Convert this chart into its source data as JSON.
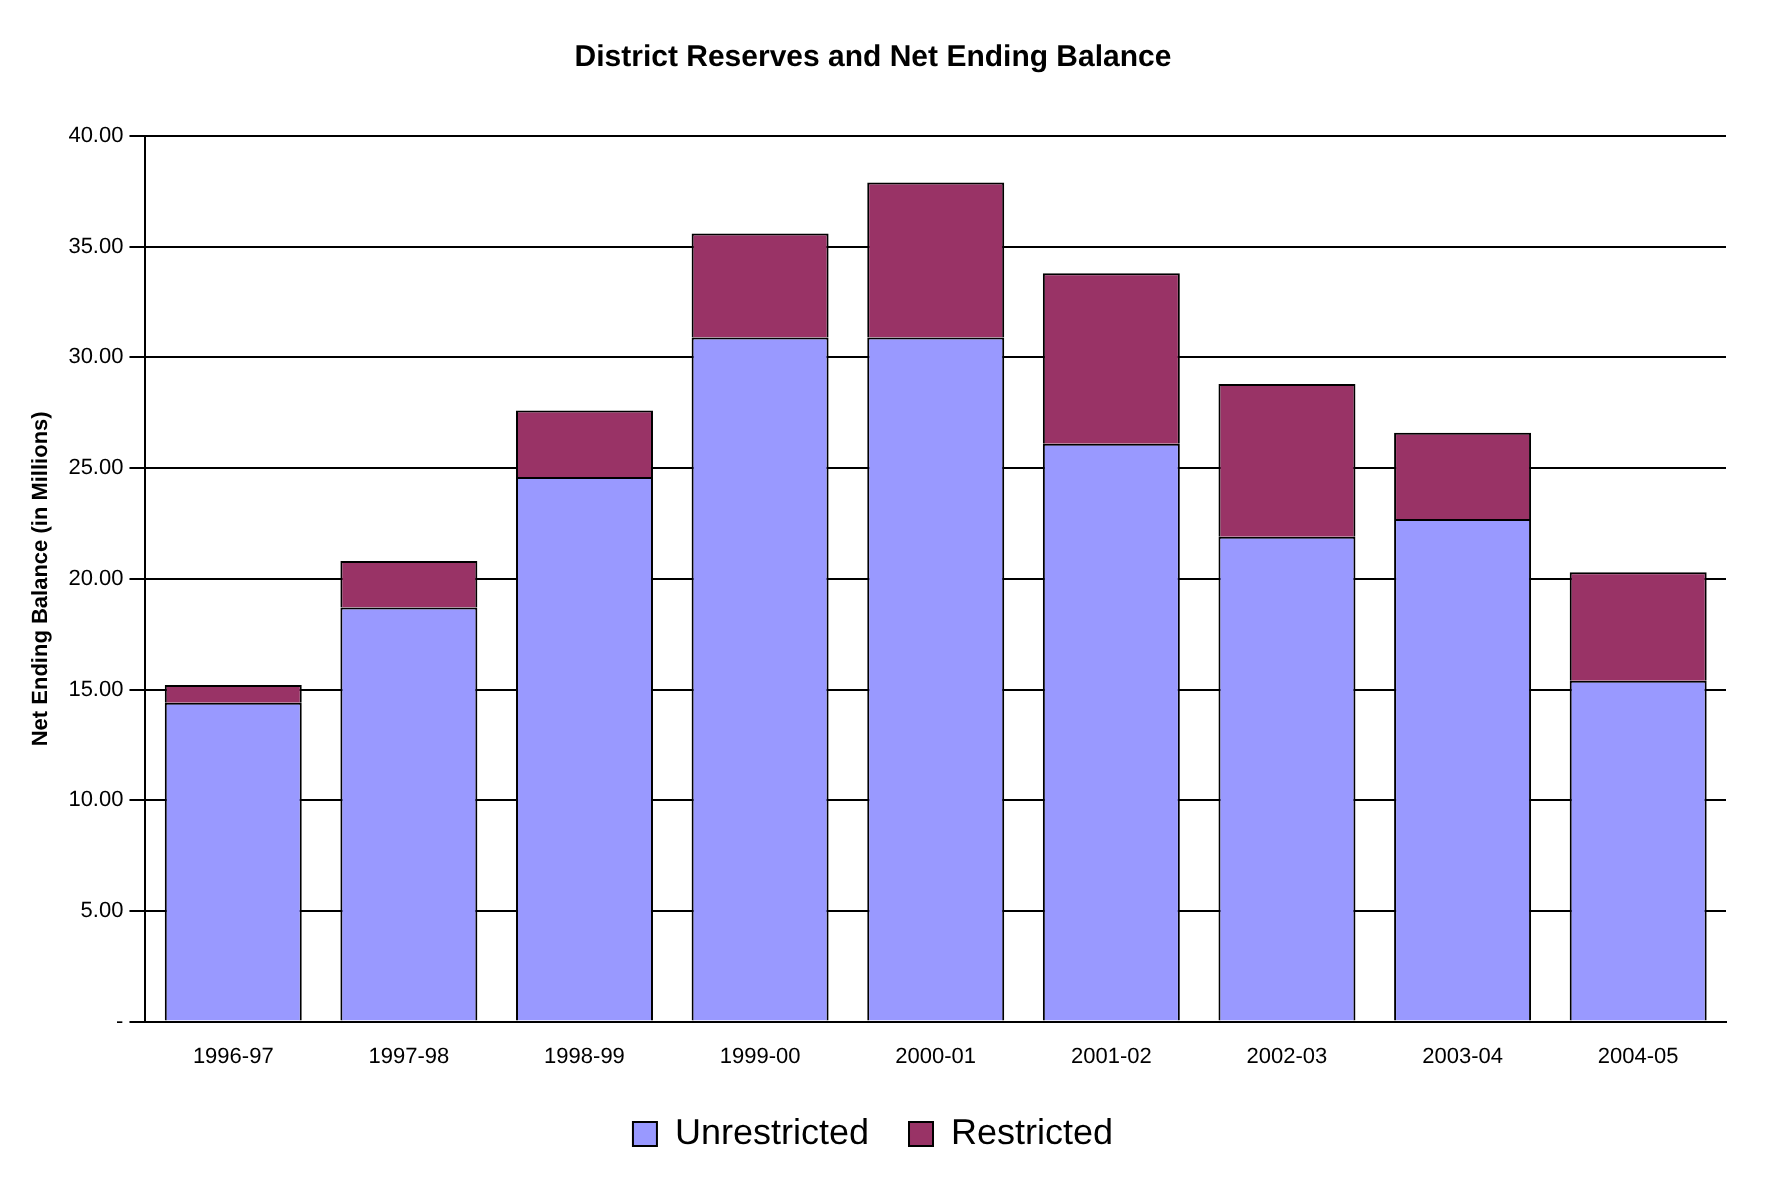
{
  "chart_data": {
    "type": "bar",
    "title": "District Reserves and Net Ending Balance",
    "ylabel": "Net Ending Balance (in Millions)",
    "categories": [
      "1996-97",
      "1997-98",
      "1998-99",
      "1999-00",
      "2000-01",
      "2001-02",
      "2002-03",
      "2003-04",
      "2004-05"
    ],
    "series": [
      {
        "name": "Unrestricted",
        "color": "#9999ff",
        "values": [
          14.4,
          18.7,
          24.6,
          30.9,
          30.9,
          26.1,
          21.9,
          22.7,
          15.4
        ]
      },
      {
        "name": "Restricted",
        "color": "#993366",
        "values": [
          0.8,
          2.1,
          3.0,
          4.7,
          7.0,
          7.7,
          6.9,
          3.9,
          4.9
        ]
      }
    ],
    "stacked": true,
    "ylim": [
      0,
      40
    ],
    "yticks": [
      {
        "value": 0,
        "label": "-"
      },
      {
        "value": 5,
        "label": "5.00"
      },
      {
        "value": 10,
        "label": "10.00"
      },
      {
        "value": 15,
        "label": "15.00"
      },
      {
        "value": 20,
        "label": "20.00"
      },
      {
        "value": 25,
        "label": "25.00"
      },
      {
        "value": 30,
        "label": "30.00"
      },
      {
        "value": 35,
        "label": "35.00"
      },
      {
        "value": 40,
        "label": "40.00"
      }
    ],
    "grid": "y",
    "legend": "bottom"
  }
}
